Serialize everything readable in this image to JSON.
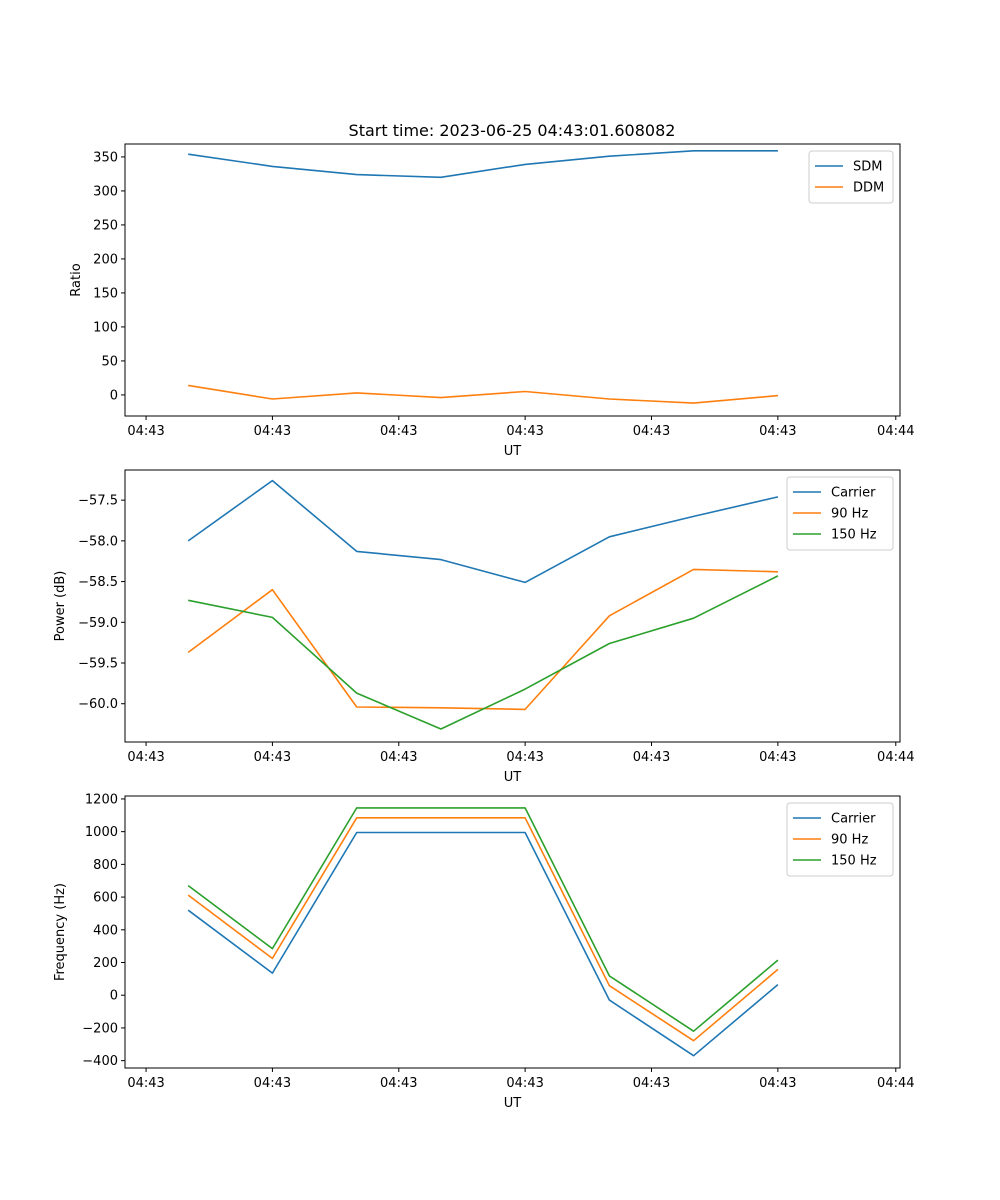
{
  "figure_title": "Start time: 2023-06-25 04:43:01.608082",
  "colors": {
    "blue": "#1f77b4",
    "orange": "#ff7f0e",
    "green": "#2ca02c"
  },
  "chart_data": [
    {
      "type": "line",
      "ylabel": "Ratio",
      "xlabel": "UT",
      "x": [
        1,
        2,
        3,
        4,
        5,
        6,
        7,
        8
      ],
      "xlim": [
        0.25,
        9.45
      ],
      "x_ticks": [
        0.5,
        2,
        3.5,
        5,
        6.5,
        8,
        9.4
      ],
      "x_tick_labels": [
        "04:43",
        "04:43",
        "04:43",
        "04:43",
        "04:43",
        "04:43",
        "04:44"
      ],
      "ylim": [
        -31,
        369
      ],
      "y_ticks": [
        0,
        50,
        100,
        150,
        200,
        250,
        300,
        350
      ],
      "y_tick_labels": [
        "0",
        "50",
        "100",
        "150",
        "200",
        "250",
        "300",
        "350"
      ],
      "legend_position": "top-right",
      "series": [
        {
          "name": "SDM",
          "color": "#1f77b4",
          "values": [
            354,
            336,
            324,
            320,
            339,
            351,
            359,
            359
          ]
        },
        {
          "name": "DDM",
          "color": "#ff7f0e",
          "values": [
            14,
            -6,
            3,
            -4,
            5,
            -6,
            -12,
            -1
          ]
        }
      ]
    },
    {
      "type": "line",
      "ylabel": "Power (dB)",
      "xlabel": "UT",
      "x": [
        1,
        2,
        3,
        4,
        5,
        6,
        7,
        8
      ],
      "xlim": [
        0.25,
        9.45
      ],
      "x_ticks": [
        0.5,
        2,
        3.5,
        5,
        6.5,
        8,
        9.4
      ],
      "x_tick_labels": [
        "04:43",
        "04:43",
        "04:43",
        "04:43",
        "04:43",
        "04:43",
        "04:44"
      ],
      "ylim": [
        -60.47,
        -57.13
      ],
      "y_ticks": [
        -60.0,
        -59.5,
        -59.0,
        -58.5,
        -58.0,
        -57.5
      ],
      "y_tick_labels": [
        "−60.0",
        "−59.5",
        "−59.0",
        "−58.5",
        "−58.0",
        "−57.5"
      ],
      "legend_position": "top-right",
      "series": [
        {
          "name": "Carrier",
          "color": "#1f77b4",
          "values": [
            -58.0,
            -57.26,
            -58.13,
            -58.23,
            -58.51,
            -57.95,
            -57.7,
            -57.46
          ]
        },
        {
          "name": "90 Hz",
          "color": "#ff7f0e",
          "values": [
            -59.37,
            -58.6,
            -60.04,
            -60.05,
            -60.07,
            -58.92,
            -58.35,
            -58.38
          ]
        },
        {
          "name": "150 Hz",
          "color": "#2ca02c",
          "values": [
            -58.73,
            -58.94,
            -59.87,
            -60.31,
            -59.82,
            -59.26,
            -58.95,
            -58.43
          ]
        }
      ]
    },
    {
      "type": "line",
      "ylabel": "Frequency (Hz)",
      "xlabel": "UT",
      "x": [
        1,
        2,
        3,
        4,
        5,
        6,
        7,
        8
      ],
      "xlim": [
        0.25,
        9.45
      ],
      "x_ticks": [
        0.5,
        2,
        3.5,
        5,
        6.5,
        8,
        9.4
      ],
      "x_tick_labels": [
        "04:43",
        "04:43",
        "04:43",
        "04:43",
        "04:43",
        "04:43",
        "04:44"
      ],
      "ylim": [
        -445,
        1218
      ],
      "y_ticks": [
        -400,
        -200,
        0,
        200,
        400,
        600,
        800,
        1000,
        1200
      ],
      "y_tick_labels": [
        "−400",
        "−200",
        "0",
        "200",
        "400",
        "600",
        "800",
        "1000",
        "1200"
      ],
      "legend_position": "top-right",
      "series": [
        {
          "name": "Carrier",
          "color": "#1f77b4",
          "values": [
            520,
            135,
            995,
            995,
            995,
            -30,
            -370,
            65
          ]
        },
        {
          "name": "90 Hz",
          "color": "#ff7f0e",
          "values": [
            612,
            225,
            1085,
            1085,
            1085,
            58,
            -278,
            158
          ]
        },
        {
          "name": "150 Hz",
          "color": "#2ca02c",
          "values": [
            670,
            285,
            1145,
            1145,
            1145,
            118,
            -220,
            215
          ]
        }
      ]
    }
  ]
}
